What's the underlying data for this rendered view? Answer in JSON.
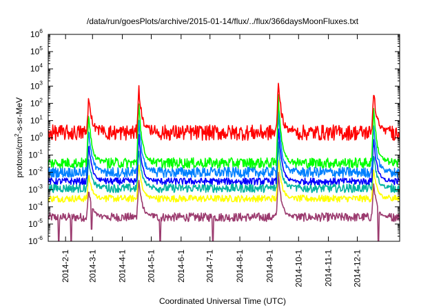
{
  "chart_data": {
    "type": "line",
    "title": "/data/run/goesPlots/archive/2015-01-14/flux/../flux/366daysMoonFluxes.txt",
    "xlabel": "Coordinated Universal Time (UTC)",
    "ylabel": "protons/cm2-s-sr-MeV",
    "ylabel_parts": {
      "before": "protons/cm",
      "sup": "2",
      "after": "-s-sr-MeV"
    },
    "yscale": "log",
    "ylim_exponents": [
      -6,
      6
    ],
    "yticks": [
      {
        "base": "10",
        "exp": "-6",
        "v": -6
      },
      {
        "base": "10",
        "exp": "-5",
        "v": -5
      },
      {
        "base": "10",
        "exp": "-4",
        "v": -4
      },
      {
        "base": "10",
        "exp": "-3",
        "v": -3
      },
      {
        "base": "10",
        "exp": "-2",
        "v": -2
      },
      {
        "base": "10",
        "exp": "-1",
        "v": -1
      },
      {
        "base": "10",
        "exp": "0",
        "v": 0
      },
      {
        "base": "10",
        "exp": "1",
        "v": 1
      },
      {
        "base": "10",
        "exp": "2",
        "v": 2
      },
      {
        "base": "10",
        "exp": "3",
        "v": 3
      },
      {
        "base": "10",
        "exp": "4",
        "v": 4
      },
      {
        "base": "10",
        "exp": "5",
        "v": 5
      },
      {
        "base": "10",
        "exp": "6",
        "v": 6
      }
    ],
    "xlim": [
      "2014-01-14",
      "2015-01-14"
    ],
    "xticks": [
      {
        "label": "2014-2-1",
        "date": "2014-02-01"
      },
      {
        "label": "2014-3-1",
        "date": "2014-03-01"
      },
      {
        "label": "2014-4-1",
        "date": "2014-04-01"
      },
      {
        "label": "2014-5-1",
        "date": "2014-05-01"
      },
      {
        "label": "2014-6-1",
        "date": "2014-06-01"
      },
      {
        "label": "2014-7-1",
        "date": "2014-07-01"
      },
      {
        "label": "2014-8-1",
        "date": "2014-08-01"
      },
      {
        "label": "2014-9-1",
        "date": "2014-09-01"
      },
      {
        "label": "2014-10-1",
        "date": "2014-10-01"
      },
      {
        "label": "2014-11-1",
        "date": "2014-11-01"
      },
      {
        "label": "2014-12-1",
        "date": "2014-12-01"
      }
    ],
    "grid": false,
    "legend": "none",
    "series": [
      {
        "color": "#9b3a6e",
        "baseline": 2.5e-05,
        "noise": 0.25
      },
      {
        "color": "#ffff00",
        "baseline": 0.0003,
        "noise": 0.2
      },
      {
        "color": "#00b3a0",
        "baseline": 0.0012,
        "noise": 0.25
      },
      {
        "color": "#0000ff",
        "baseline": 0.003,
        "noise": 0.2
      },
      {
        "color": "#0080ff",
        "baseline": 0.01,
        "noise": 0.3
      },
      {
        "color": "#00ff00",
        "baseline": 0.035,
        "noise": 0.3
      },
      {
        "color": "#ff0000",
        "baseline": 2.0,
        "noise": 0.45
      }
    ],
    "events": [
      {
        "date": "2014-02-25",
        "peak": 250
      },
      {
        "date": "2014-04-18",
        "peak": 1000
      },
      {
        "date": "2014-09-10",
        "peak": 2000
      },
      {
        "date": "2014-12-18",
        "peak": 500
      }
    ],
    "dropouts": [
      {
        "date": "2014-01-25",
        "min": 1e-06
      },
      {
        "date": "2014-02-07",
        "min": 1e-06
      },
      {
        "date": "2014-02-28",
        "min": 5e-06
      },
      {
        "date": "2014-05-10",
        "min": 1e-06
      },
      {
        "date": "2014-07-04",
        "min": 1e-06
      },
      {
        "date": "2014-12-23",
        "min": 1e-06
      }
    ]
  }
}
